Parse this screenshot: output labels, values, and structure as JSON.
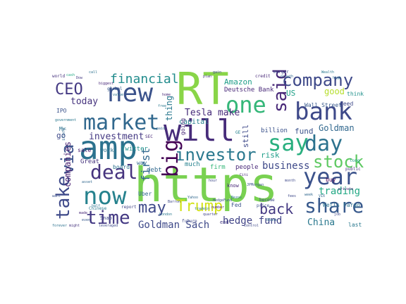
{
  "words": [
    {
      "text": "https",
      "color": "#79d151"
    },
    {
      "text": "RT",
      "color": "#89d548"
    },
    {
      "text": "amp",
      "color": "#2c728e"
    },
    {
      "text": "new",
      "color": "#3b528b"
    },
    {
      "text": "will",
      "color": "#472c7a"
    },
    {
      "text": "market",
      "color": "#31688e"
    },
    {
      "text": "bank",
      "color": "#3e4989"
    },
    {
      "text": "one",
      "color": "#35b779"
    },
    {
      "text": "say",
      "color": "#29af7f"
    },
    {
      "text": "day",
      "color": "#2c728e"
    },
    {
      "text": "said",
      "color": "#482878"
    },
    {
      "text": "company",
      "color": "#3e4989"
    },
    {
      "text": "now",
      "color": "#26828e"
    },
    {
      "text": "deal",
      "color": "#46337e"
    },
    {
      "text": "year",
      "color": "#3b528b"
    },
    {
      "text": "time",
      "color": "#443983"
    },
    {
      "text": "share",
      "color": "#38598c"
    },
    {
      "text": "investor",
      "color": "#2a788e"
    },
    {
      "text": "stock",
      "color": "#5ec962"
    },
    {
      "text": "take",
      "color": "#3e4989"
    },
    {
      "text": "via",
      "color": "#3b528b"
    },
    {
      "text": "CEO",
      "color": "#443983"
    },
    {
      "text": "financial",
      "color": "#228c8d"
    },
    {
      "text": "big",
      "color": "#440154"
    },
    {
      "text": "may",
      "color": "#3e4989"
    },
    {
      "text": "Trump",
      "color": "#d2e21b"
    },
    {
      "text": "back",
      "color": "#443983"
    },
    {
      "text": "hedge fund",
      "color": "#414487"
    },
    {
      "text": "Goldman Sach",
      "color": "#3e4989"
    },
    {
      "text": "business",
      "color": "#3e4989"
    },
    {
      "text": "trading",
      "color": "#22a884"
    },
    {
      "text": "Tesla make",
      "color": "#472c7a"
    },
    {
      "text": "first",
      "color": "#31688e"
    },
    {
      "text": "investment",
      "color": "#443983"
    },
    {
      "text": "Goldman",
      "color": "#31688e"
    },
    {
      "text": "today",
      "color": "#46337e"
    },
    {
      "text": "good",
      "color": "#b5de2b"
    },
    {
      "text": "Amazon",
      "color": "#1f9e89"
    },
    {
      "text": "China",
      "color": "#2a788e"
    },
    {
      "text": "fund",
      "color": "#3b528b"
    },
    {
      "text": "companies",
      "color": "#481f70"
    },
    {
      "text": "US",
      "color": "#1fa188"
    },
    {
      "text": "risk",
      "color": "#1f9e89"
    },
    {
      "text": "still",
      "color": "#3e4989"
    },
    {
      "text": "thing",
      "color": "#2a788e"
    },
    {
      "text": "Deutsche Bank",
      "color": "#482878"
    },
    {
      "text": "Twitter",
      "color": "#21918c"
    },
    {
      "text": "Wall Street",
      "color": "#38598c"
    },
    {
      "text": "Wells Fargo",
      "color": "#2c728e"
    },
    {
      "text": "go",
      "color": "#3e4989"
    },
    {
      "text": "Great",
      "color": "#46337e"
    },
    {
      "text": "capital",
      "color": "#26828e"
    },
    {
      "text": "billion",
      "color": "#3b528b"
    },
    {
      "text": "people",
      "color": "#482878"
    },
    {
      "text": "firm",
      "color": "#35b779"
    },
    {
      "text": "board",
      "color": "#2c728e"
    },
    {
      "text": "sale",
      "color": "#481f70"
    },
    {
      "text": "work",
      "color": "#2c728e"
    },
    {
      "text": "Uber",
      "color": "#31688e"
    },
    {
      "text": "debt",
      "color": "#31688e"
    },
    {
      "text": "much",
      "color": "#26828e"
    },
    {
      "text": "way",
      "color": "#31688e"
    },
    {
      "text": "going",
      "color": "#482878"
    },
    {
      "text": "need",
      "color": "#3e4989"
    },
    {
      "text": "think",
      "color": "#21918c"
    },
    {
      "text": "buy",
      "color": "#440154"
    },
    {
      "text": "last",
      "color": "#2a788e"
    },
    {
      "text": "Fed",
      "color": "#3b528b"
    },
    {
      "text": "end",
      "color": "#443983"
    },
    {
      "text": "know",
      "color": "#482878"
    },
    {
      "text": "IPO",
      "color": "#3b528b"
    },
    {
      "text": "Mr",
      "color": "#2c728e"
    },
    {
      "text": "story",
      "color": "#31688e"
    },
    {
      "text": "Snap",
      "color": "#3e4989"
    },
    {
      "text": "Chinese",
      "color": "#2a788e"
    },
    {
      "text": "future",
      "color": "#3e4989"
    },
    {
      "text": "report",
      "color": "#414487"
    },
    {
      "text": "public",
      "color": "#46337e"
    },
    {
      "text": "long",
      "color": "#1f9e89"
    },
    {
      "text": "credit",
      "color": "#482878"
    },
    {
      "text": "merger",
      "color": "#3e4989"
    },
    {
      "text": "global",
      "color": "#38598c"
    },
    {
      "text": "biggest",
      "color": "#482878"
    },
    {
      "text": "value",
      "color": "#2c728e"
    },
    {
      "text": "price",
      "color": "#3b528b"
    },
    {
      "text": "become",
      "color": "#3e4989"
    },
    {
      "text": "JPMorgan",
      "color": "#3b528b"
    },
    {
      "text": "world",
      "color": "#46337e"
    },
    {
      "text": "cash",
      "color": "#22a884"
    },
    {
      "text": "call",
      "color": "#2c728e"
    },
    {
      "text": "SEC",
      "color": "#482878"
    },
    {
      "text": "Dow",
      "color": "#443983"
    },
    {
      "text": "government",
      "color": "#2a788e"
    },
    {
      "text": "hour",
      "color": "#3e4989"
    },
    {
      "text": "week",
      "color": "#31688e"
    },
    {
      "text": "month",
      "color": "#3e4989"
    },
    {
      "text": "growth",
      "color": "#31688e"
    },
    {
      "text": "high",
      "color": "#2c728e"
    },
    {
      "text": "private",
      "color": "#482878"
    },
    {
      "text": "quarter",
      "color": "#414487"
    },
    {
      "text": "Barron",
      "color": "#3e4989"
    },
    {
      "text": "London",
      "color": "#2a788e"
    },
    {
      "text": "Yahoo",
      "color": "#31688e"
    },
    {
      "text": "number",
      "color": "#482878"
    },
    {
      "text": "tradein",
      "color": "#2a788e"
    },
    {
      "text": "control",
      "color": "#3e4989"
    },
    {
      "text": "BBank",
      "color": "#31688e"
    },
    {
      "text": "forever",
      "color": "#2c728e"
    },
    {
      "text": "might",
      "color": "#46337e"
    },
    {
      "text": "even",
      "color": "#38598c"
    },
    {
      "text": "leveraged",
      "color": "#3e4989"
    },
    {
      "text": "made",
      "color": "#482878"
    },
    {
      "text": "half",
      "color": "#2c728e"
    },
    {
      "text": "asset",
      "color": "#31688e"
    },
    {
      "text": "want",
      "color": "#3b528b"
    },
    {
      "text": "home",
      "color": "#482878"
    },
    {
      "text": "free",
      "color": "#2a788e"
    },
    {
      "text": "plan",
      "color": "#46337e"
    },
    {
      "text": "gain",
      "color": "#3e4989"
    },
    {
      "text": "paid",
      "color": "#31688e"
    },
    {
      "text": "Bezos",
      "color": "#2c728e"
    },
    {
      "text": "fees",
      "color": "#3e4989"
    },
    {
      "text": "HedgeFund",
      "color": "#3b528b"
    },
    {
      "text": "Wealth",
      "color": "#2a788e"
    },
    {
      "text": "Citi",
      "color": "#482878"
    },
    {
      "text": "GE",
      "color": "#26828e"
    },
    {
      "text": "VIX",
      "color": "#31688e"
    },
    {
      "text": "job",
      "color": "#3e4989"
    }
  ]
}
